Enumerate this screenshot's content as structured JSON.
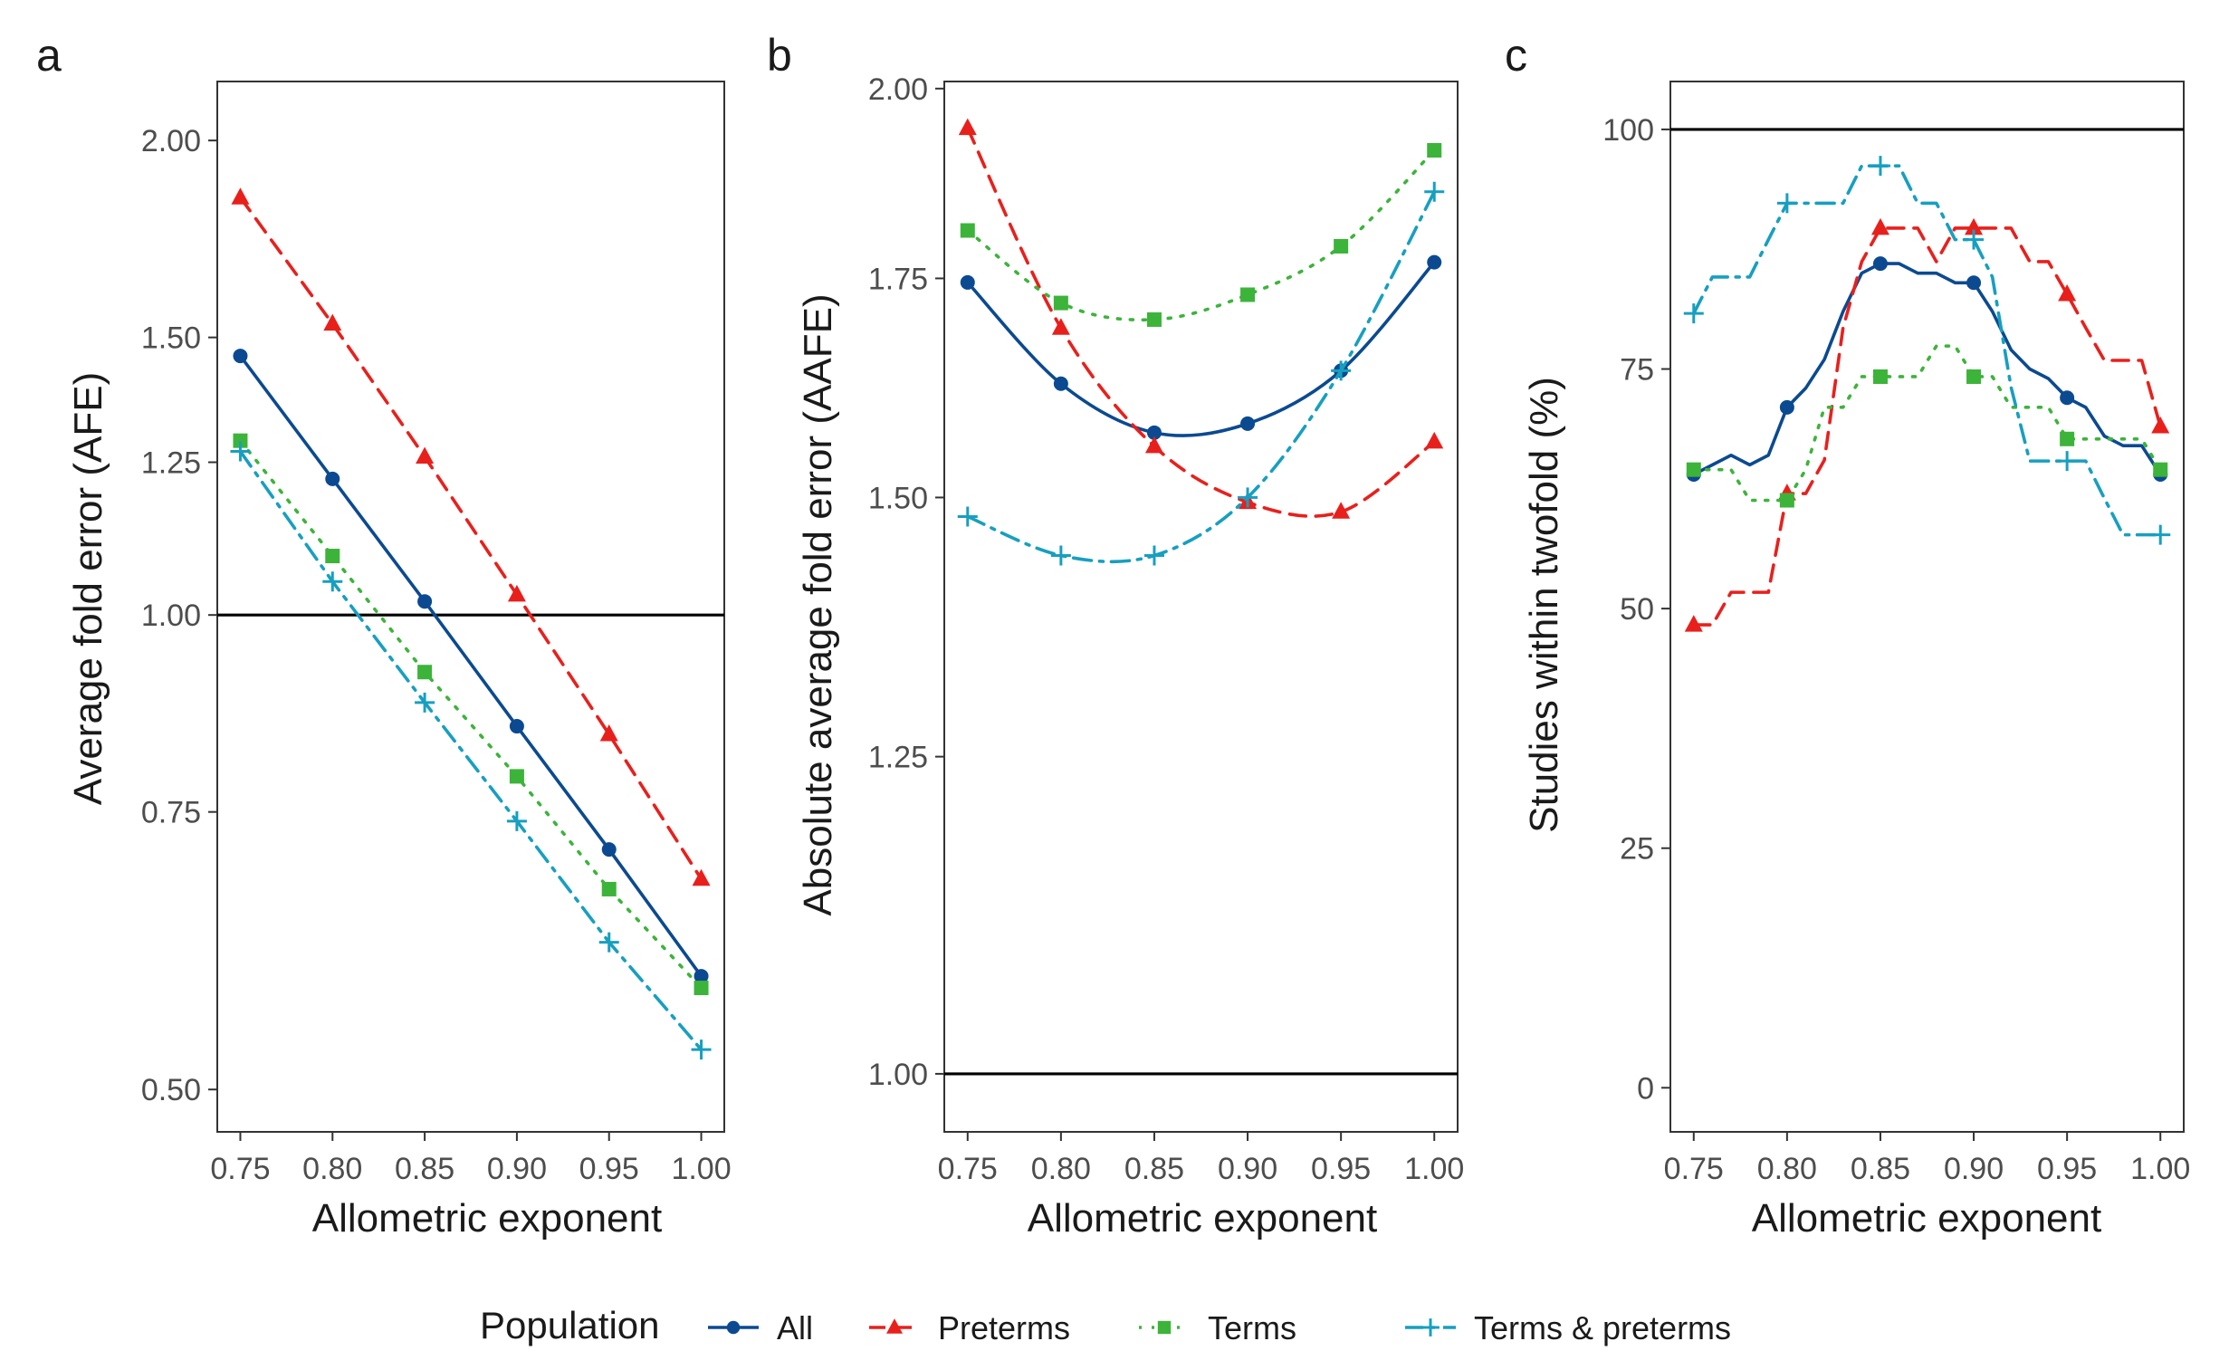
{
  "chart_data": [
    {
      "type": "line",
      "panel": "a",
      "xlabel": "Allometric exponent",
      "ylabel": "Average fold error (AFE)",
      "yscale": "log",
      "ylim": [
        0.47,
        2.18
      ],
      "xlim": [
        0.7375,
        1.0125
      ],
      "xticks": [
        "0.75",
        "0.80",
        "0.85",
        "0.90",
        "0.95",
        "1.00"
      ],
      "yticks": [
        "0.50",
        "0.75",
        "1.00",
        "1.25",
        "1.50",
        "2.00"
      ],
      "reference_line": 1.0,
      "points": [
        0.75,
        0.8,
        0.85,
        0.9,
        0.95,
        1.0
      ],
      "series": [
        {
          "name": "All",
          "x": [
            0.75,
            0.8,
            0.85,
            0.9,
            0.95,
            1.0
          ],
          "values": [
            1.46,
            1.22,
            1.02,
            0.85,
            0.71,
            0.59
          ]
        },
        {
          "name": "Preterms",
          "x": [
            0.75,
            0.8,
            0.85,
            0.9,
            0.95,
            1.0
          ],
          "values": [
            1.84,
            1.53,
            1.26,
            1.03,
            0.84,
            0.68
          ]
        },
        {
          "name": "Terms",
          "x": [
            0.75,
            0.8,
            0.85,
            0.9,
            0.95,
            1.0
          ],
          "values": [
            1.29,
            1.09,
            0.92,
            0.79,
            0.67,
            0.58
          ]
        },
        {
          "name": "Terms & preterms",
          "x": [
            0.75,
            0.8,
            0.85,
            0.9,
            0.95,
            1.0
          ],
          "values": [
            1.27,
            1.05,
            0.88,
            0.74,
            0.62,
            0.53
          ]
        }
      ]
    },
    {
      "type": "line",
      "panel": "b",
      "xlabel": "Allometric exponent",
      "ylabel": "Absolute average fold error (AAFE)",
      "yscale": "log",
      "ylim": [
        0.96,
        2.01
      ],
      "xlim": [
        0.7375,
        1.0125
      ],
      "xticks": [
        "0.75",
        "0.80",
        "0.85",
        "0.90",
        "0.95",
        "1.00"
      ],
      "yticks": [
        "1.00",
        "1.25",
        "1.50",
        "1.75",
        "2.00"
      ],
      "reference_line": 1.0,
      "points": [
        0.75,
        0.8,
        0.85,
        0.9,
        0.95,
        1.0
      ],
      "series": [
        {
          "name": "All",
          "x": [
            0.75,
            0.8,
            0.85,
            0.9,
            0.95,
            1.0
          ],
          "values": [
            1.745,
            1.625,
            1.57,
            1.58,
            1.64,
            1.77
          ]
        },
        {
          "name": "Preterms",
          "x": [
            0.75,
            0.8,
            0.85,
            0.9,
            0.95,
            1.0
          ],
          "values": [
            1.945,
            1.69,
            1.555,
            1.495,
            1.485,
            1.56
          ]
        },
        {
          "name": "Terms",
          "x": [
            0.75,
            0.8,
            0.85,
            0.9,
            0.95,
            1.0
          ],
          "values": [
            1.81,
            1.72,
            1.7,
            1.73,
            1.79,
            1.915
          ]
        },
        {
          "name": "Terms & preterms",
          "x": [
            0.75,
            0.8,
            0.85,
            0.9,
            0.95,
            1.0
          ],
          "values": [
            1.48,
            1.44,
            1.44,
            1.5,
            1.64,
            1.86
          ]
        }
      ]
    },
    {
      "type": "line",
      "panel": "c",
      "xlabel": "Allometric exponent",
      "ylabel": "Studies within twofold (%)",
      "yscale": "linear",
      "ylim": [
        -4.6,
        105
      ],
      "xlim": [
        0.7375,
        1.0125
      ],
      "xticks": [
        "0.75",
        "0.80",
        "0.85",
        "0.90",
        "0.95",
        "1.00"
      ],
      "yticks": [
        "0",
        "25",
        "50",
        "75",
        "100"
      ],
      "reference_line": 100,
      "points": [
        0.75,
        0.8,
        0.85,
        0.9,
        0.95,
        1.0
      ],
      "series": [
        {
          "name": "All",
          "x": [
            0.75,
            0.76,
            0.77,
            0.78,
            0.79,
            0.8,
            0.81,
            0.82,
            0.83,
            0.84,
            0.85,
            0.86,
            0.87,
            0.88,
            0.89,
            0.9,
            0.91,
            0.92,
            0.93,
            0.94,
            0.95,
            0.96,
            0.97,
            0.98,
            0.99,
            1.0
          ],
          "values": [
            64,
            65,
            66,
            65,
            66,
            71,
            73,
            76,
            81,
            85,
            86,
            86,
            85,
            85,
            84,
            84,
            81,
            77,
            75,
            74,
            72,
            71,
            68,
            67,
            67,
            64
          ]
        },
        {
          "name": "Preterms",
          "x": [
            0.75,
            0.76,
            0.77,
            0.78,
            0.79,
            0.8,
            0.81,
            0.82,
            0.83,
            0.84,
            0.85,
            0.86,
            0.87,
            0.88,
            0.89,
            0.9,
            0.91,
            0.92,
            0.93,
            0.94,
            0.95,
            0.96,
            0.97,
            0.98,
            0.99,
            1.0
          ],
          "values": [
            48.3,
            48.3,
            51.7,
            51.7,
            51.7,
            62,
            62,
            65.5,
            79.3,
            86.2,
            89.7,
            89.7,
            89.7,
            86.2,
            89.7,
            89.7,
            89.7,
            89.7,
            86.2,
            86.2,
            82.8,
            79.3,
            75.9,
            75.9,
            75.9,
            69
          ]
        },
        {
          "name": "Terms",
          "x": [
            0.75,
            0.76,
            0.77,
            0.78,
            0.79,
            0.8,
            0.81,
            0.82,
            0.83,
            0.84,
            0.85,
            0.86,
            0.87,
            0.88,
            0.89,
            0.9,
            0.91,
            0.92,
            0.93,
            0.94,
            0.95,
            0.96,
            0.97,
            0.98,
            0.99,
            1.0
          ],
          "values": [
            64.5,
            64.5,
            64.5,
            61.3,
            61.3,
            61.3,
            64.5,
            71,
            71,
            74.2,
            74.2,
            74.2,
            74.2,
            77.4,
            77.4,
            74.2,
            74.2,
            71,
            71,
            71,
            67.7,
            67.7,
            67.7,
            67.7,
            67.7,
            64.5
          ]
        },
        {
          "name": "Terms & preterms",
          "x": [
            0.75,
            0.76,
            0.77,
            0.78,
            0.79,
            0.8,
            0.81,
            0.82,
            0.83,
            0.84,
            0.85,
            0.86,
            0.87,
            0.88,
            0.89,
            0.9,
            0.91,
            0.92,
            0.93,
            0.94,
            0.95,
            0.96,
            0.97,
            0.98,
            0.99,
            1.0
          ],
          "values": [
            80.8,
            84.6,
            84.6,
            84.6,
            88.5,
            92.3,
            92.3,
            92.3,
            92.3,
            96.2,
            96.2,
            96.2,
            92.3,
            92.3,
            88.5,
            88.5,
            84.6,
            73.1,
            65.4,
            65.4,
            65.4,
            65.4,
            61.5,
            57.7,
            57.7,
            57.7
          ]
        }
      ]
    }
  ],
  "panels": [
    {
      "tag": "a",
      "xlabel": "Allometric exponent",
      "ylabel": "Average fold error (AFE)"
    },
    {
      "tag": "b",
      "xlabel": "Allometric exponent",
      "ylabel": "Absolute average fold error (AAFE)"
    },
    {
      "tag": "c",
      "xlabel": "Allometric exponent",
      "ylabel": "Studies within twofold (%)"
    }
  ],
  "legend": {
    "title": "Population",
    "position": "bottom",
    "items": [
      {
        "label": "All",
        "color": "#0b4a91",
        "marker": "circle",
        "dash": "solid"
      },
      {
        "label": "Preterms",
        "color": "#e8201c",
        "marker": "triangle",
        "dash": "dashed"
      },
      {
        "label": "Terms",
        "color": "#3cb43a",
        "marker": "square",
        "dash": "dotted"
      },
      {
        "label": "Terms & preterms",
        "color": "#179fc0",
        "marker": "plus",
        "dash": "dashdot"
      }
    ]
  },
  "colors": {
    "All": "#0b4a91",
    "Preterms": "#e8201c",
    "Terms": "#3cb43a",
    "Terms & preterms": "#179fc0",
    "reference": "#000000"
  }
}
